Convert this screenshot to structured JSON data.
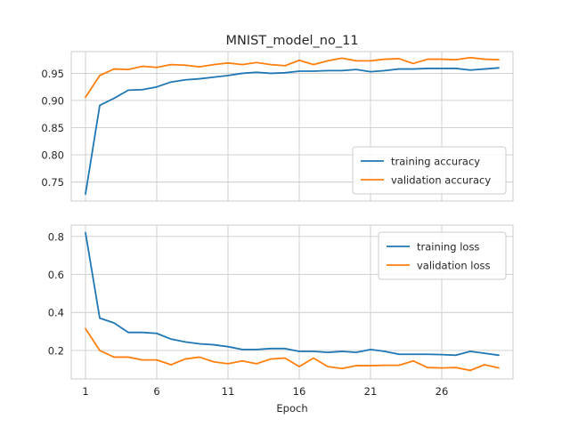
{
  "chart_data": [
    {
      "type": "line",
      "title": "MNIST_model_no_11",
      "xlabel": "",
      "ylabel": "",
      "xlim": [
        0,
        31
      ],
      "ylim": [
        0.715,
        0.99
      ],
      "x_ticks": [
        1,
        6,
        11,
        16,
        21,
        26
      ],
      "x_tick_labels_shown": false,
      "y_ticks": [
        0.75,
        0.8,
        0.85,
        0.9,
        0.95
      ],
      "y_tick_labels": [
        "0.75",
        "0.80",
        "0.85",
        "0.90",
        "0.95"
      ],
      "grid": true,
      "legend_position": "lower-right",
      "x": [
        1,
        2,
        3,
        4,
        5,
        6,
        7,
        8,
        9,
        10,
        11,
        12,
        13,
        14,
        15,
        16,
        17,
        18,
        19,
        20,
        21,
        22,
        23,
        24,
        25,
        26,
        27,
        28,
        29,
        30
      ],
      "series": [
        {
          "name": "training accuracy",
          "color": "#1f77b4",
          "values": [
            0.728,
            0.891,
            0.904,
            0.919,
            0.92,
            0.925,
            0.934,
            0.938,
            0.94,
            0.943,
            0.946,
            0.95,
            0.952,
            0.95,
            0.951,
            0.954,
            0.954,
            0.955,
            0.955,
            0.957,
            0.953,
            0.955,
            0.958,
            0.958,
            0.959,
            0.959,
            0.959,
            0.956,
            0.958,
            0.96
          ]
        },
        {
          "name": "validation accuracy",
          "color": "#ff7f0e",
          "values": [
            0.906,
            0.946,
            0.958,
            0.957,
            0.963,
            0.961,
            0.966,
            0.965,
            0.962,
            0.966,
            0.969,
            0.966,
            0.97,
            0.966,
            0.964,
            0.974,
            0.966,
            0.973,
            0.978,
            0.973,
            0.973,
            0.976,
            0.977,
            0.968,
            0.976,
            0.976,
            0.975,
            0.979,
            0.976,
            0.975
          ]
        }
      ]
    },
    {
      "type": "line",
      "title": "",
      "xlabel": "Epoch",
      "ylabel": "",
      "xlim": [
        0,
        31
      ],
      "ylim": [
        0.05,
        0.86
      ],
      "x_ticks": [
        1,
        6,
        11,
        16,
        21,
        26
      ],
      "x_tick_labels": [
        "1",
        "6",
        "11",
        "16",
        "21",
        "26"
      ],
      "y_ticks": [
        0.2,
        0.4,
        0.6,
        0.8
      ],
      "y_tick_labels": [
        "0.2",
        "0.4",
        "0.6",
        "0.8"
      ],
      "grid": true,
      "legend_position": "upper-right",
      "x": [
        1,
        2,
        3,
        4,
        5,
        6,
        7,
        8,
        9,
        10,
        11,
        12,
        13,
        14,
        15,
        16,
        17,
        18,
        19,
        20,
        21,
        22,
        23,
        24,
        25,
        26,
        27,
        28,
        29,
        30
      ],
      "series": [
        {
          "name": "training loss",
          "color": "#1f77b4",
          "values": [
            0.82,
            0.37,
            0.345,
            0.295,
            0.295,
            0.29,
            0.26,
            0.245,
            0.235,
            0.23,
            0.22,
            0.205,
            0.205,
            0.21,
            0.21,
            0.195,
            0.195,
            0.19,
            0.195,
            0.19,
            0.205,
            0.195,
            0.18,
            0.18,
            0.18,
            0.178,
            0.175,
            0.195,
            0.185,
            0.175
          ]
        },
        {
          "name": "validation loss",
          "color": "#ff7f0e",
          "values": [
            0.315,
            0.2,
            0.165,
            0.165,
            0.15,
            0.15,
            0.125,
            0.155,
            0.165,
            0.14,
            0.13,
            0.145,
            0.13,
            0.155,
            0.16,
            0.115,
            0.16,
            0.115,
            0.105,
            0.12,
            0.12,
            0.122,
            0.122,
            0.145,
            0.11,
            0.108,
            0.11,
            0.095,
            0.125,
            0.108
          ]
        }
      ]
    }
  ]
}
